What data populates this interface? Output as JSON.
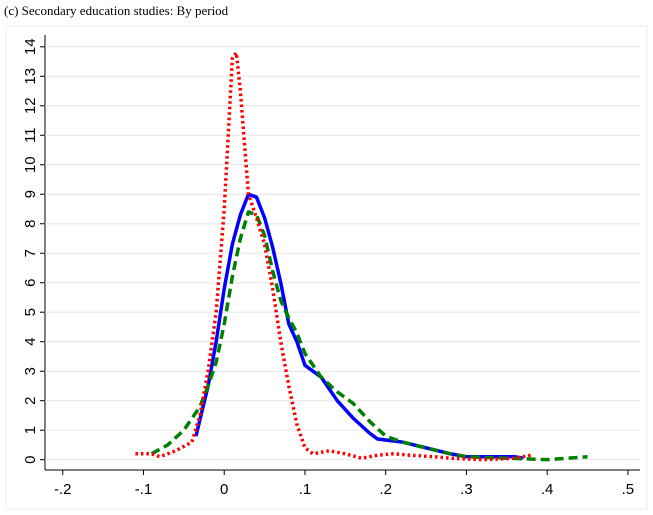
{
  "chart_data": {
    "type": "line",
    "title": "(c) Secondary education studies: By period",
    "xlim": [
      -0.222,
      0.515
    ],
    "ylim": [
      -0.35,
      14.4
    ],
    "xticks": [
      {
        "value": -0.2,
        "label": "-.2"
      },
      {
        "value": -0.1,
        "label": "-.1"
      },
      0,
      {
        "value": 0.1,
        "label": ".1"
      },
      {
        "value": 0.2,
        "label": ".2"
      },
      {
        "value": 0.3,
        "label": ".3"
      },
      {
        "value": 0.4,
        "label": ".4"
      },
      {
        "value": 0.5,
        "label": ".5"
      }
    ],
    "yticks": [
      0,
      1,
      2,
      3,
      4,
      5,
      6,
      7,
      8,
      9,
      10,
      11,
      12,
      13,
      14
    ],
    "grid": true,
    "series": [
      {
        "color": "#0000ff",
        "line_style": "solid",
        "x": [
          -0.035,
          -0.02,
          -0.01,
          0,
          0.01,
          0.02,
          0.03,
          0.04,
          0.05,
          0.06,
          0.07,
          0.08,
          0.09,
          0.1,
          0.12,
          0.14,
          0.16,
          0.18,
          0.19,
          0.22,
          0.25,
          0.28,
          0.3,
          0.34,
          0.36,
          0.37
        ],
        "values": [
          0.8,
          2.5,
          4,
          5.8,
          7.3,
          8.3,
          9.0,
          8.9,
          8.2,
          7.2,
          6.0,
          4.6,
          4.0,
          3.2,
          2.8,
          2.0,
          1.4,
          0.9,
          0.7,
          0.6,
          0.4,
          0.2,
          0.1,
          0.1,
          0.1,
          0.05
        ]
      },
      {
        "color": "#008000",
        "line_style": "dash",
        "x": [
          -0.09,
          -0.07,
          -0.05,
          -0.03,
          -0.02,
          -0.01,
          0,
          0.01,
          0.02,
          0.03,
          0.04,
          0.05,
          0.06,
          0.07,
          0.08,
          0.09,
          0.1,
          0.12,
          0.14,
          0.16,
          0.18,
          0.2,
          0.22,
          0.25,
          0.28,
          0.3,
          0.35,
          0.4,
          0.45
        ],
        "values": [
          0.2,
          0.5,
          1.0,
          1.8,
          2.5,
          3.3,
          4.6,
          6.2,
          7.5,
          8.4,
          8.3,
          7.6,
          6.4,
          5.4,
          4.8,
          4.3,
          3.6,
          2.8,
          2.3,
          1.9,
          1.3,
          0.8,
          0.6,
          0.4,
          0.2,
          0.1,
          0.05,
          0,
          0.1
        ]
      },
      {
        "color": "#ff0000",
        "line_style": "dot",
        "x": [
          -0.11,
          -0.09,
          -0.08,
          -0.06,
          -0.04,
          -0.03,
          -0.02,
          -0.01,
          0,
          0.005,
          0.01,
          0.015,
          0.02,
          0.03,
          0.04,
          0.05,
          0.06,
          0.07,
          0.08,
          0.09,
          0.1,
          0.11,
          0.13,
          0.15,
          0.17,
          0.19,
          0.21,
          0.23,
          0.26,
          0.28,
          0.32,
          0.36,
          0.38
        ],
        "values": [
          0.2,
          0.2,
          0.1,
          0.3,
          0.6,
          1.5,
          3.0,
          5.0,
          8.5,
          11,
          13.6,
          13.8,
          12.5,
          9.0,
          8.2,
          7.3,
          5.8,
          4.0,
          2.5,
          1.2,
          0.4,
          0.2,
          0.3,
          0.2,
          0.05,
          0.15,
          0.2,
          0.15,
          0.1,
          0.05,
          0.0,
          0.05,
          0.15
        ]
      }
    ]
  }
}
